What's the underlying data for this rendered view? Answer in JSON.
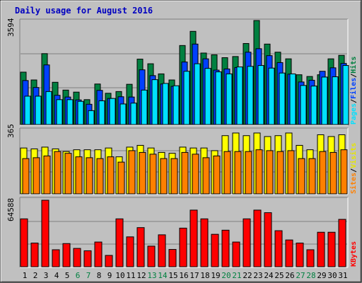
{
  "chart_data": [
    {
      "type": "bar",
      "title": "Daily usage for August 2016",
      "categories": [
        "1",
        "2",
        "3",
        "4",
        "5",
        "6",
        "7",
        "8",
        "9",
        "10",
        "11",
        "12",
        "13",
        "14",
        "15",
        "16",
        "17",
        "18",
        "19",
        "20",
        "21",
        "22",
        "23",
        "24",
        "25",
        "26",
        "27",
        "28",
        "29",
        "30",
        "31"
      ],
      "weekend_days": [
        "6",
        "7",
        "13",
        "14",
        "20",
        "21",
        "27",
        "28"
      ],
      "ymax_label": "3594",
      "ylim": [
        0,
        3594
      ],
      "series": [
        {
          "name": "Hits",
          "color": "#008040",
          "values": [
            1810,
            1540,
            2450,
            1460,
            1190,
            1120,
            860,
            1400,
            1080,
            1140,
            1390,
            2260,
            2100,
            1750,
            1540,
            2730,
            3220,
            2470,
            2410,
            2310,
            2350,
            2800,
            3594,
            2780,
            2500,
            2270,
            1720,
            1660,
            1720,
            2270,
            2390
          ]
        },
        {
          "name": "Files",
          "color": "#0040ff",
          "values": [
            1520,
            1280,
            2060,
            1010,
            950,
            850,
            700,
            1180,
            900,
            960,
            950,
            1890,
            1690,
            1400,
            1320,
            2160,
            2780,
            2270,
            1880,
            1920,
            1970,
            2500,
            2620,
            2380,
            2140,
            1740,
            1470,
            1530,
            1840,
            1960,
            2110
          ]
        },
        {
          "name": "Pages",
          "color": "#00e0ff",
          "values": [
            980,
            980,
            1140,
            860,
            860,
            800,
            480,
            820,
            900,
            710,
            740,
            1190,
            1550,
            1420,
            1340,
            1840,
            2100,
            1940,
            1820,
            1750,
            1990,
            2010,
            2040,
            1950,
            1780,
            1750,
            1350,
            1330,
            1640,
            1650,
            2040
          ]
        }
      ]
    },
    {
      "type": "bar",
      "categories": [
        "1",
        "2",
        "3",
        "4",
        "5",
        "6",
        "7",
        "8",
        "9",
        "10",
        "11",
        "12",
        "13",
        "14",
        "15",
        "16",
        "17",
        "18",
        "19",
        "20",
        "21",
        "22",
        "23",
        "24",
        "25",
        "26",
        "27",
        "28",
        "29",
        "30",
        "31"
      ],
      "ymax_label": "365",
      "ylim": [
        0,
        365
      ],
      "series": [
        {
          "name": "Visits",
          "color": "#ffff00",
          "values": [
            260,
            255,
            265,
            255,
            240,
            250,
            250,
            250,
            260,
            210,
            265,
            275,
            260,
            235,
            230,
            265,
            260,
            260,
            245,
            330,
            345,
            330,
            345,
            325,
            330,
            345,
            275,
            250,
            335,
            325,
            335
          ]
        },
        {
          "name": "Sites",
          "color": "#ff8000",
          "values": [
            200,
            205,
            215,
            240,
            230,
            210,
            205,
            200,
            210,
            180,
            245,
            235,
            225,
            200,
            200,
            235,
            225,
            205,
            215,
            240,
            240,
            240,
            250,
            245,
            240,
            245,
            200,
            200,
            240,
            235,
            250
          ]
        }
      ]
    },
    {
      "type": "bar",
      "categories": [
        "1",
        "2",
        "3",
        "4",
        "5",
        "6",
        "7",
        "8",
        "9",
        "10",
        "11",
        "12",
        "13",
        "14",
        "15",
        "16",
        "17",
        "18",
        "19",
        "20",
        "21",
        "22",
        "23",
        "24",
        "25",
        "26",
        "27",
        "28",
        "29",
        "30",
        "31"
      ],
      "ymax_label": "64588",
      "ylim": [
        0,
        64588
      ],
      "series": [
        {
          "name": "KBytes",
          "color": "#ff0000",
          "values": [
            46500,
            23000,
            64588,
            16500,
            22500,
            17800,
            15500,
            24000,
            11000,
            46500,
            29000,
            38000,
            20000,
            31000,
            16800,
            37500,
            55000,
            46500,
            31500,
            35500,
            24000,
            46500,
            55000,
            52500,
            35000,
            26000,
            23000,
            16500,
            33500,
            33500,
            46000
          ]
        }
      ]
    }
  ]
}
